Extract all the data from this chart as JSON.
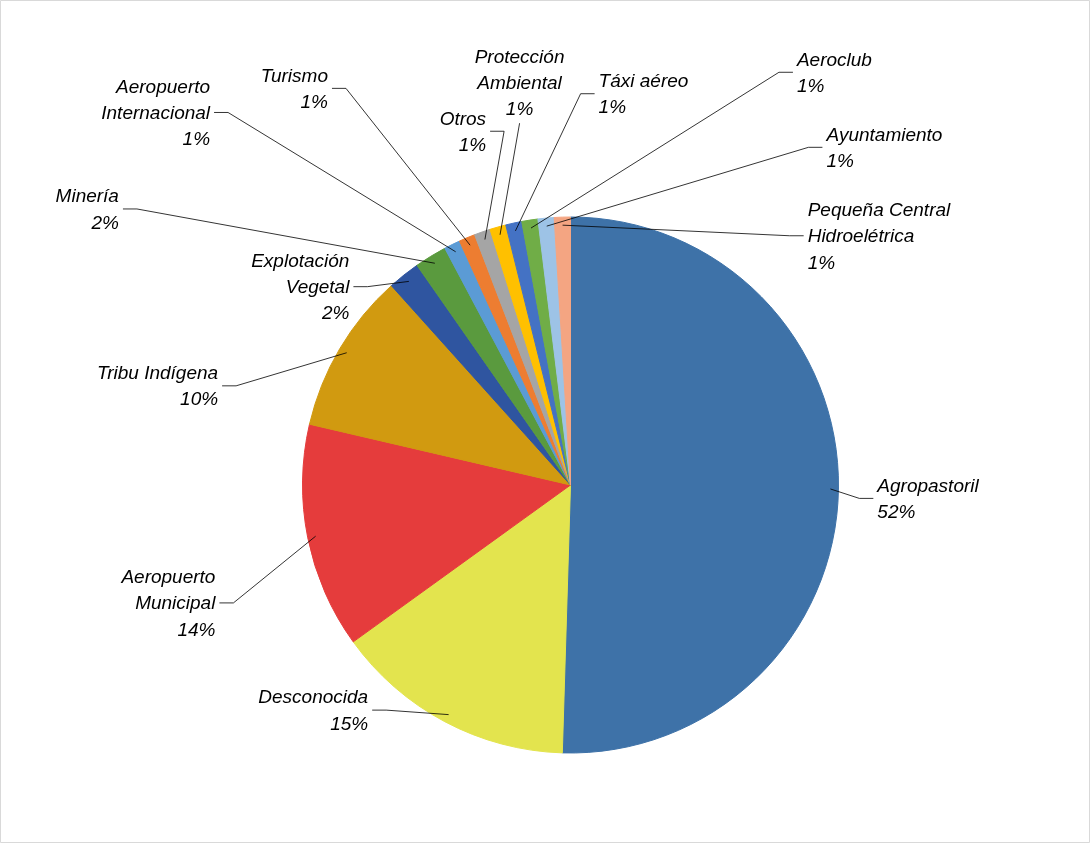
{
  "chart_data": {
    "type": "pie",
    "categories": [
      "Agropastoril",
      "Desconocida",
      "Aeropuerto Municipal",
      "Tribu Indígena",
      "Explotación Vegetal",
      "Minería",
      "Aeropuerto Internacional",
      "Turismo",
      "Otros",
      "Protección Ambiental",
      "Táxi aéreo",
      "Aeroclub",
      "Ayuntamiento",
      "Pequeña Central Hidroelétrica"
    ],
    "values": [
      52,
      15,
      14,
      10,
      2,
      2,
      1,
      1,
      1,
      1,
      1,
      1,
      1,
      1
    ],
    "value_labels": [
      "52%",
      "15%",
      "14%",
      "10%",
      "2%",
      "2%",
      "1%",
      "1%",
      "1%",
      "1%",
      "1%",
      "1%",
      "1%",
      "1%"
    ],
    "colors": [
      "#3e72a8",
      "#e3e44e",
      "#e53c3c",
      "#d19a10",
      "#2f55a0",
      "#5a9a3e",
      "#5b9bd5",
      "#ed7d31",
      "#a5a5a5",
      "#ffc000",
      "#4472c4",
      "#70ad47",
      "#9dc3e6",
      "#f4a582"
    ]
  }
}
